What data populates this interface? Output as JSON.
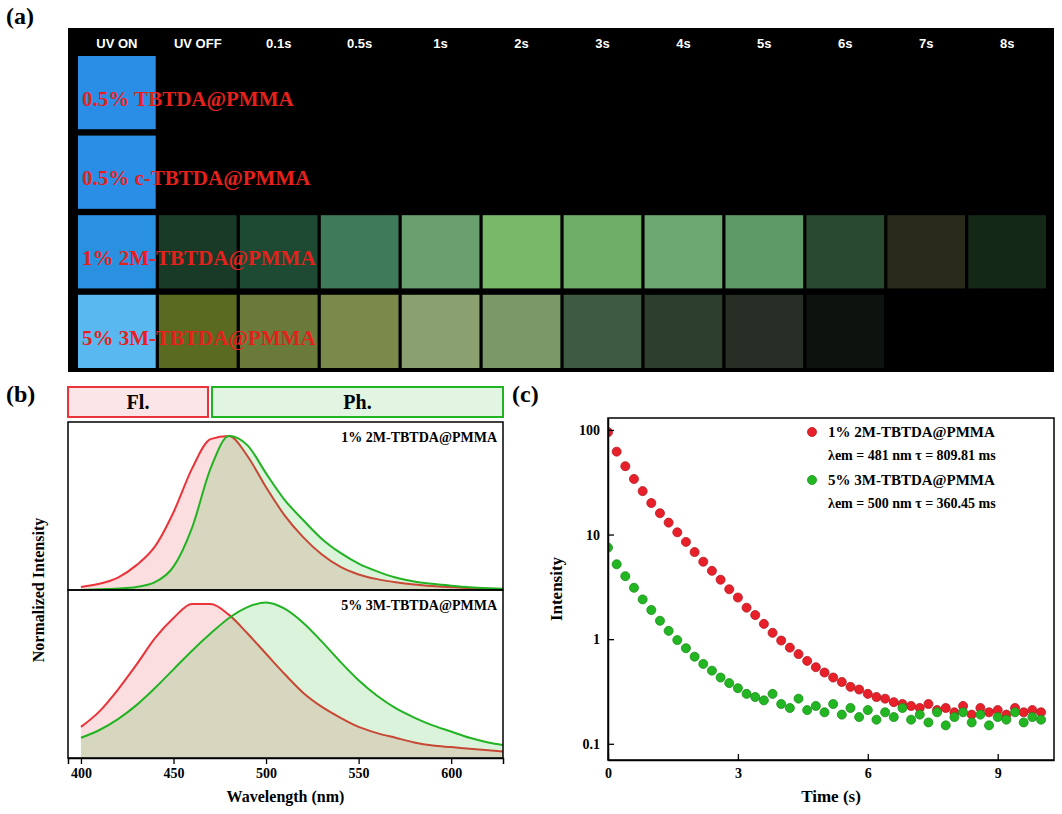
{
  "chart_data": [
    {
      "type": "image_grid",
      "panel": "(a)",
      "categories": [
        "UV ON",
        "UV OFF",
        "0.1s",
        "0.5s",
        "1s",
        "2s",
        "3s",
        "4s",
        "5s",
        "6s",
        "7s",
        "8s"
      ],
      "rows": [
        "0.5% TBTDA@PMMA",
        "0.5% c-TBTDA@PMMA",
        "1% 2M-TBTDA@PMMA",
        "5% 3M-TBTDA@PMMA"
      ],
      "cells": [
        [
          "#2a8ee6",
          null,
          null,
          null,
          null,
          null,
          null,
          null,
          null,
          null,
          null,
          null
        ],
        [
          "#2a8ee6",
          null,
          null,
          null,
          null,
          null,
          null,
          null,
          null,
          null,
          null,
          null
        ],
        [
          "#2a90e0",
          "#1a3a28",
          "#1e4a34",
          "#3f7a5a",
          "#6aa070",
          "#78b868",
          "#6eae68",
          "#6ca870",
          "#5e9a68",
          "#2a4a30",
          "#2a2a1a",
          "#142818"
        ],
        [
          "#5ab8f0",
          "#5a6a20",
          "#6a7a3a",
          "#7a8a4a",
          "#8aa070",
          "#7a9868",
          "#3e5a40",
          "#2e3e2e",
          "#262e26",
          "#0e120e",
          null,
          null
        ]
      ]
    },
    {
      "type": "area",
      "panel": "(b)",
      "x_label": "Wavelength (nm)",
      "y_label": "Normalized Intensity",
      "x": [
        400,
        410,
        420,
        430,
        440,
        450,
        460,
        470,
        480,
        490,
        500,
        510,
        520,
        530,
        540,
        550,
        560,
        570,
        580,
        590,
        600,
        610,
        620,
        630
      ],
      "xlim": [
        393,
        628
      ],
      "xticks": [
        400,
        450,
        500,
        550,
        600
      ],
      "ylim": [
        0,
        1.08
      ],
      "tick_labels": "x",
      "legend": "top",
      "series": [
        {
          "name": "Fl.",
          "color": "#e8343a"
        },
        {
          "name": "Ph.",
          "color": "#22b322"
        }
      ],
      "subplots": [
        {
          "annotation": "1% 2M-TBTDA@PMMA",
          "values": [
            [
              0.02,
              0.04,
              0.08,
              0.16,
              0.28,
              0.5,
              0.78,
              0.97,
              0.99,
              0.86,
              0.66,
              0.48,
              0.34,
              0.23,
              0.15,
              0.1,
              0.07,
              0.05,
              0.035,
              0.025,
              0.018,
              0.012,
              0.008,
              0.005
            ],
            [
              0.0,
              0.005,
              0.01,
              0.02,
              0.05,
              0.15,
              0.4,
              0.78,
              0.99,
              0.93,
              0.75,
              0.58,
              0.45,
              0.33,
              0.24,
              0.17,
              0.12,
              0.08,
              0.055,
              0.04,
              0.028,
              0.018,
              0.012,
              0.008
            ]
          ]
        },
        {
          "annotation": "5% 3M-TBTDA@PMMA",
          "values": [
            [
              0.2,
              0.3,
              0.44,
              0.6,
              0.77,
              0.9,
              0.99,
              0.99,
              0.92,
              0.8,
              0.67,
              0.54,
              0.42,
              0.33,
              0.26,
              0.2,
              0.16,
              0.13,
              0.1,
              0.08,
              0.07,
              0.06,
              0.05,
              0.04
            ],
            [
              0.13,
              0.18,
              0.25,
              0.34,
              0.45,
              0.57,
              0.69,
              0.8,
              0.9,
              0.97,
              1.0,
              0.96,
              0.87,
              0.75,
              0.62,
              0.5,
              0.4,
              0.32,
              0.26,
              0.21,
              0.17,
              0.13,
              0.1,
              0.08
            ]
          ]
        }
      ]
    },
    {
      "type": "scatter",
      "panel": "(c)",
      "x_label": "Time (s)",
      "y_label": "Intensity",
      "log": "y",
      "marker": "circle",
      "legend": "top-right",
      "x": [
        0,
        0.2,
        0.4,
        0.6,
        0.8,
        1.0,
        1.2,
        1.4,
        1.6,
        1.8,
        2.0,
        2.2,
        2.4,
        2.6,
        2.8,
        3.0,
        3.2,
        3.4,
        3.6,
        3.8,
        4.0,
        4.2,
        4.4,
        4.6,
        4.8,
        5.0,
        5.2,
        5.4,
        5.6,
        5.8,
        6.0,
        6.2,
        6.4,
        6.6,
        6.8,
        7.0,
        7.2,
        7.4,
        7.6,
        7.8,
        8.0,
        8.2,
        8.4,
        8.6,
        8.8,
        9.0,
        9.2,
        9.4,
        9.6,
        9.8,
        10.0
      ],
      "xlim": [
        0,
        10.3
      ],
      "xticks": [
        0,
        3,
        6,
        9
      ],
      "ylim": [
        0.07,
        130
      ],
      "yticks": [
        0.1,
        1,
        10,
        100
      ],
      "series": [
        {
          "name": "1% 2M-TBTDA@PMMA",
          "color": "#e8202a",
          "annotation": "λem = 481 nm  τ = 809.81 ms",
          "values": [
            95,
            62,
            45,
            34,
            26,
            20,
            16,
            13,
            10.5,
            8.5,
            6.8,
            5.5,
            4.5,
            3.7,
            3.0,
            2.5,
            2.0,
            1.7,
            1.4,
            1.15,
            0.97,
            0.83,
            0.72,
            0.62,
            0.54,
            0.48,
            0.43,
            0.39,
            0.35,
            0.33,
            0.3,
            0.28,
            0.27,
            0.25,
            0.24,
            0.23,
            0.22,
            0.24,
            0.21,
            0.22,
            0.2,
            0.23,
            0.19,
            0.22,
            0.2,
            0.21,
            0.19,
            0.22,
            0.2,
            0.21,
            0.2
          ]
        },
        {
          "name": "5% 3M-TBTDA@PMMA",
          "color": "#22b622",
          "annotation": "λem = 500 nm  τ = 360.45 ms",
          "values": [
            7.5,
            5.2,
            4.0,
            3.1,
            2.4,
            1.9,
            1.5,
            1.2,
            0.98,
            0.82,
            0.68,
            0.58,
            0.5,
            0.43,
            0.38,
            0.34,
            0.3,
            0.28,
            0.26,
            0.3,
            0.24,
            0.22,
            0.27,
            0.21,
            0.23,
            0.2,
            0.24,
            0.19,
            0.22,
            0.18,
            0.21,
            0.17,
            0.2,
            0.18,
            0.22,
            0.17,
            0.19,
            0.16,
            0.2,
            0.15,
            0.18,
            0.2,
            0.16,
            0.19,
            0.15,
            0.18,
            0.17,
            0.2,
            0.16,
            0.18,
            0.17
          ]
        }
      ]
    }
  ]
}
